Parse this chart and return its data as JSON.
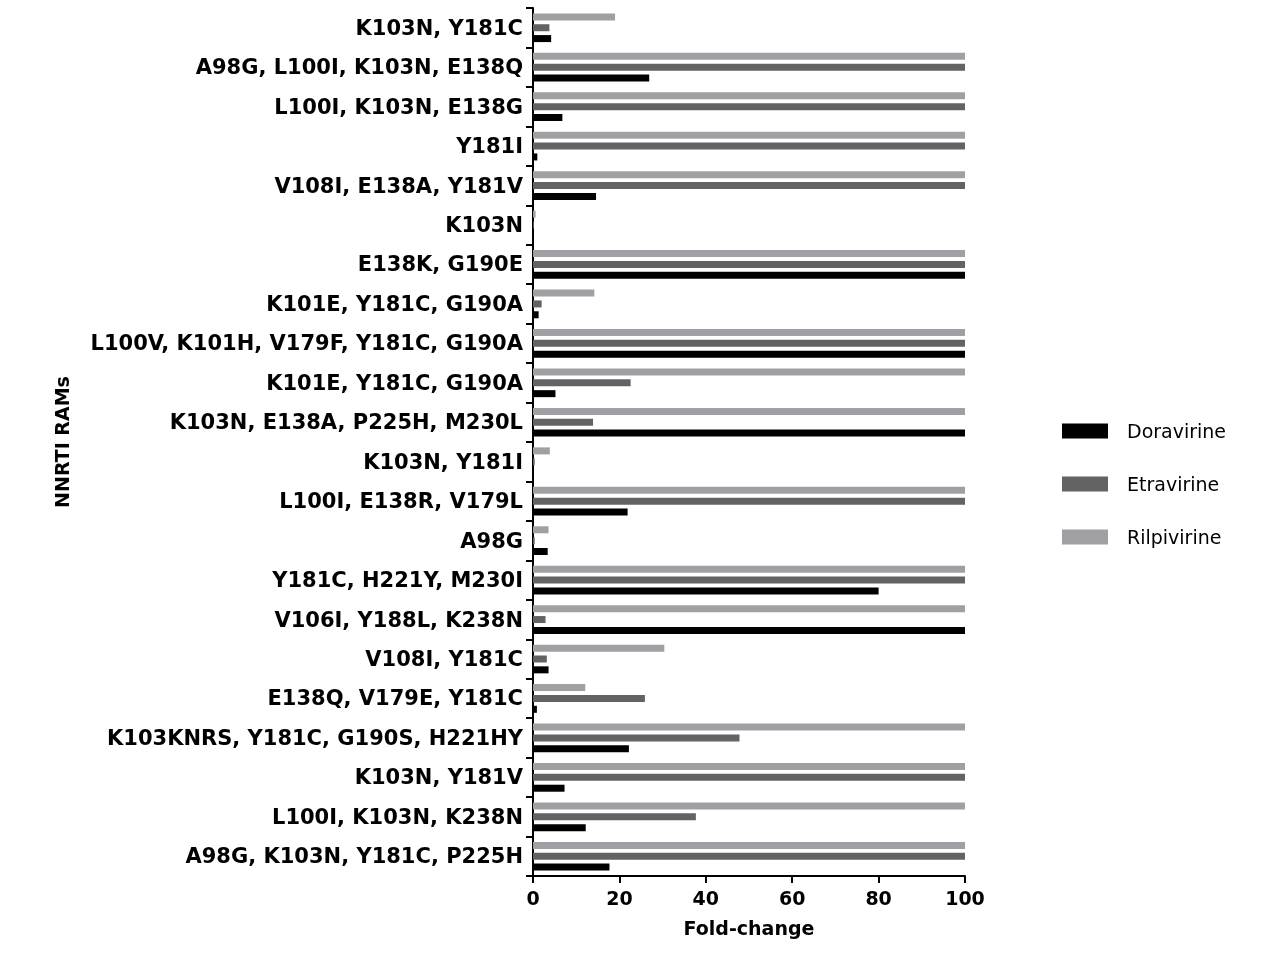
{
  "chart_data": {
    "type": "bar",
    "orientation": "horizontal",
    "xlabel": "Fold-change",
    "ylabel": "NNRTI RAMs",
    "categories": [
      "K103N, Y181C",
      "A98G, L100I, K103N, E138Q",
      "L100I, K103N, E138G",
      "Y181I",
      "V108I, E138A, Y181V",
      "K103N",
      "E138K, G190E",
      "K101E, Y181C, G190A",
      "L100V, K101H, V179F, Y181C, G190A",
      "K101E, Y181C, G190A",
      "K103N, E138A, P225H, M230L",
      "K103N, Y181I",
      "L100I, E138R, V179L",
      "A98G",
      "Y181C, H221Y, M230I",
      "V106I, Y188L, K238N",
      "V108I, Y181C",
      "E138Q, V179E, Y181C",
      "K103KNRS, Y181C, G190S, H221HY",
      "K103N, Y181V",
      "L100I, K103N, K238N",
      "A98G, K103N, Y181C, P225H"
    ],
    "series": [
      {
        "name": "Doravirine",
        "color": "#000000",
        "values": [
          4.2,
          26.9,
          6.8,
          1,
          14.6,
          null,
          100,
          1.3,
          100,
          5.2,
          100,
          0.1,
          21.9,
          3.4,
          80,
          100,
          3.6,
          0.9,
          22.2,
          7.3,
          12.2,
          17.7
        ]
      },
      {
        "name": "Etravirine",
        "color": "#636363",
        "values": [
          3.8,
          100,
          100,
          100,
          100,
          0.2,
          100,
          2,
          100,
          22.6,
          13.9,
          0.4,
          100,
          0.4,
          100,
          2.9,
          3.2,
          25.9,
          47.8,
          100,
          37.7,
          100
        ]
      },
      {
        "name": "Rilpivirine",
        "color": "#a0a0a4",
        "values": [
          19,
          100,
          100,
          100,
          100,
          0.6,
          100,
          14.2,
          100,
          100,
          100,
          3.9,
          100,
          3.6,
          100,
          100,
          30.4,
          12.1,
          100,
          100,
          100,
          100
        ]
      }
    ],
    "xlim": [
      0,
      100
    ],
    "xticks": [
      0,
      20,
      40,
      60,
      80,
      100
    ],
    "grid": false,
    "legend": "right"
  }
}
